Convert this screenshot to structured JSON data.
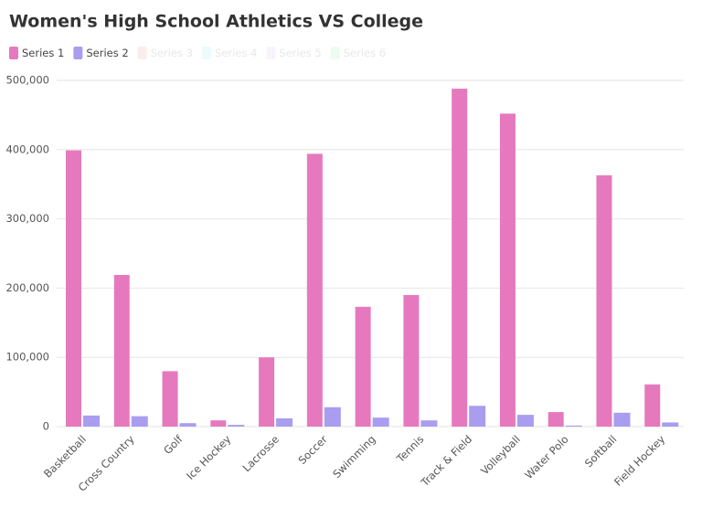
{
  "chart_data": {
    "type": "bar",
    "title": "Women's High School Athletics VS College",
    "categories": [
      "Basketball",
      "Cross Country",
      "Golf",
      "Ice Hockey",
      "Lacrosse",
      "Soccer",
      "Swimming",
      "Tennis",
      "Track & Field",
      "Volleyball",
      "Water Polo",
      "Softball",
      "Field Hockey"
    ],
    "series": [
      {
        "name": "Series 1",
        "color": "#e679bd",
        "values": [
          399000,
          219000,
          80000,
          9000,
          100000,
          394000,
          173000,
          190000,
          488000,
          452000,
          21000,
          363000,
          61000
        ]
      },
      {
        "name": "Series 2",
        "color": "#a99df0",
        "values": [
          16000,
          15000,
          5000,
          2500,
          12000,
          28000,
          13000,
          9000,
          30000,
          17000,
          1500,
          20000,
          6000
        ]
      },
      {
        "name": "Series 3",
        "color": "#f5c9c9",
        "hidden": true,
        "values": [
          null,
          null,
          null,
          null,
          null,
          null,
          null,
          null,
          null,
          null,
          null,
          null,
          null
        ]
      },
      {
        "name": "Series 4",
        "color": "#c9f3f5",
        "hidden": true,
        "values": [
          null,
          null,
          null,
          null,
          null,
          null,
          null,
          null,
          null,
          null,
          null,
          null,
          null
        ]
      },
      {
        "name": "Series 5",
        "color": "#eedcf5",
        "hidden": true,
        "values": [
          null,
          null,
          null,
          null,
          null,
          null,
          null,
          null,
          null,
          null,
          null,
          null,
          null
        ]
      },
      {
        "name": "Series 6",
        "color": "#c9f5de",
        "hidden": true,
        "values": [
          null,
          null,
          null,
          null,
          null,
          null,
          null,
          null,
          null,
          null,
          null,
          null,
          null
        ]
      }
    ],
    "ylim": [
      0,
      500000
    ],
    "yticks": [
      0,
      {
        "value": 100000,
        "label": "100,000"
      },
      {
        "value": 200000,
        "label": "200,000"
      },
      {
        "value": 300000,
        "label": "300,000"
      },
      {
        "value": 400000,
        "label": "400,000"
      },
      {
        "value": 500000,
        "label": "500,000"
      }
    ],
    "grid": true
  }
}
